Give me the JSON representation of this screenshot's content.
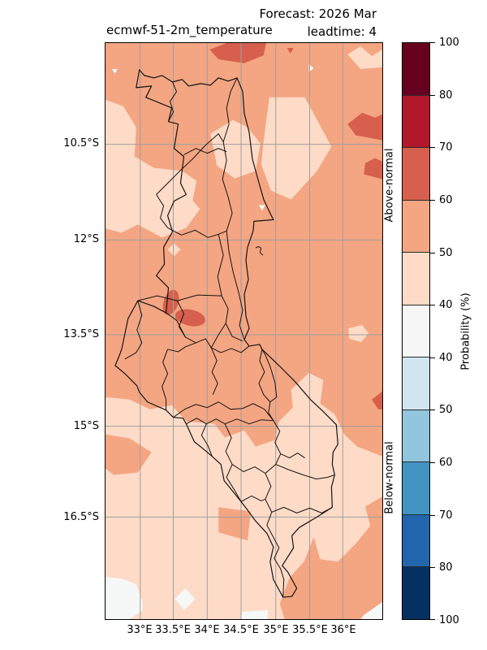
{
  "title": {
    "line1_right": "Forecast: 2026 Mar",
    "line2_left": "ecmwf-51-2m_temperature",
    "line2_right": "leadtime: 4"
  },
  "axes": {
    "x_ticks": [
      "33°E",
      "33.5°E",
      "34°E",
      "34.5°E",
      "35°E",
      "35.5°E",
      "36°E"
    ],
    "y_ticks": [
      "10.5°S",
      "12°S",
      "13.5°S",
      "15°S",
      "16.5°S"
    ]
  },
  "colorbar": {
    "label": "Probability (%)",
    "above_label": "Above-normal",
    "below_label": "Below-normal",
    "ticks": [
      "100",
      "80",
      "70",
      "60",
      "50",
      "40",
      "40",
      "50",
      "60",
      "70",
      "80",
      "100"
    ],
    "segments": [
      {
        "name": "above-normal 80-100%",
        "color": "#67001f"
      },
      {
        "name": "above-normal 70-80%",
        "color": "#b2182b"
      },
      {
        "name": "above-normal 60-70%",
        "color": "#d6604d"
      },
      {
        "name": "above-normal 50-60%",
        "color": "#f4a582"
      },
      {
        "name": "above-normal 40-50%",
        "color": "#fddbc7"
      },
      {
        "name": "neutral <40%",
        "color": "#f6f6f6"
      },
      {
        "name": "below-normal 40-50%",
        "color": "#d1e5f0"
      },
      {
        "name": "below-normal 50-60%",
        "color": "#92c5de"
      },
      {
        "name": "below-normal 60-70%",
        "color": "#4393c3"
      },
      {
        "name": "below-normal 70-80%",
        "color": "#2166ac"
      },
      {
        "name": "below-normal 80-100%",
        "color": "#053061"
      }
    ]
  },
  "chart_data": {
    "type": "heatmap",
    "subtype": "geographic-probability-forecast-map",
    "region": "Malawi and surroundings",
    "title": "Forecast: 2026 Mar",
    "model": "ecmwf-51-2m_temperature",
    "leadtime": "4",
    "x_axis": {
      "ticks": [
        "33°E",
        "33.5°E",
        "34°E",
        "34.5°E",
        "35°E",
        "35.5°E",
        "36°E"
      ],
      "range_deg_east": [
        32.5,
        36.6
      ]
    },
    "y_axis": {
      "ticks": [
        "10.5°S",
        "12°S",
        "13.5°S",
        "15°S",
        "16.5°S"
      ],
      "range_deg_south": [
        8.9,
        18.0
      ]
    },
    "grid": true,
    "legend_position": "right-colorbar",
    "colorbar": {
      "label": "Probability (%)",
      "categories": [
        "Above-normal",
        "Below-normal"
      ],
      "tick_levels": [
        100,
        80,
        70,
        60,
        50,
        40,
        40,
        50,
        60,
        70,
        80,
        100
      ],
      "colors_top_to_bottom": [
        "#67001f",
        "#b2182b",
        "#d6604d",
        "#f4a582",
        "#fddbc7",
        "#f6f6f6",
        "#d1e5f0",
        "#92c5de",
        "#4393c3",
        "#2166ac",
        "#053061"
      ]
    },
    "values_summary": [
      {
        "area": "most of domain (northern and central Malawi)",
        "category": "Above-normal",
        "probability_pct": "50-60"
      },
      {
        "area": "southern third, west-central band and patch east of Lake Malawi",
        "category": "Above-normal",
        "probability_pct": "40-50"
      },
      {
        "area": "small patches on northern edge, eastern edge and two spots near 13.3S 34E",
        "category": "Above-normal",
        "probability_pct": "60-70"
      },
      {
        "area": "south-west corner and small bottom spots",
        "category": "neutral",
        "probability_pct": "<40"
      }
    ],
    "overlays": [
      "national boundary",
      "district boundaries",
      "Likoma island mark"
    ]
  }
}
